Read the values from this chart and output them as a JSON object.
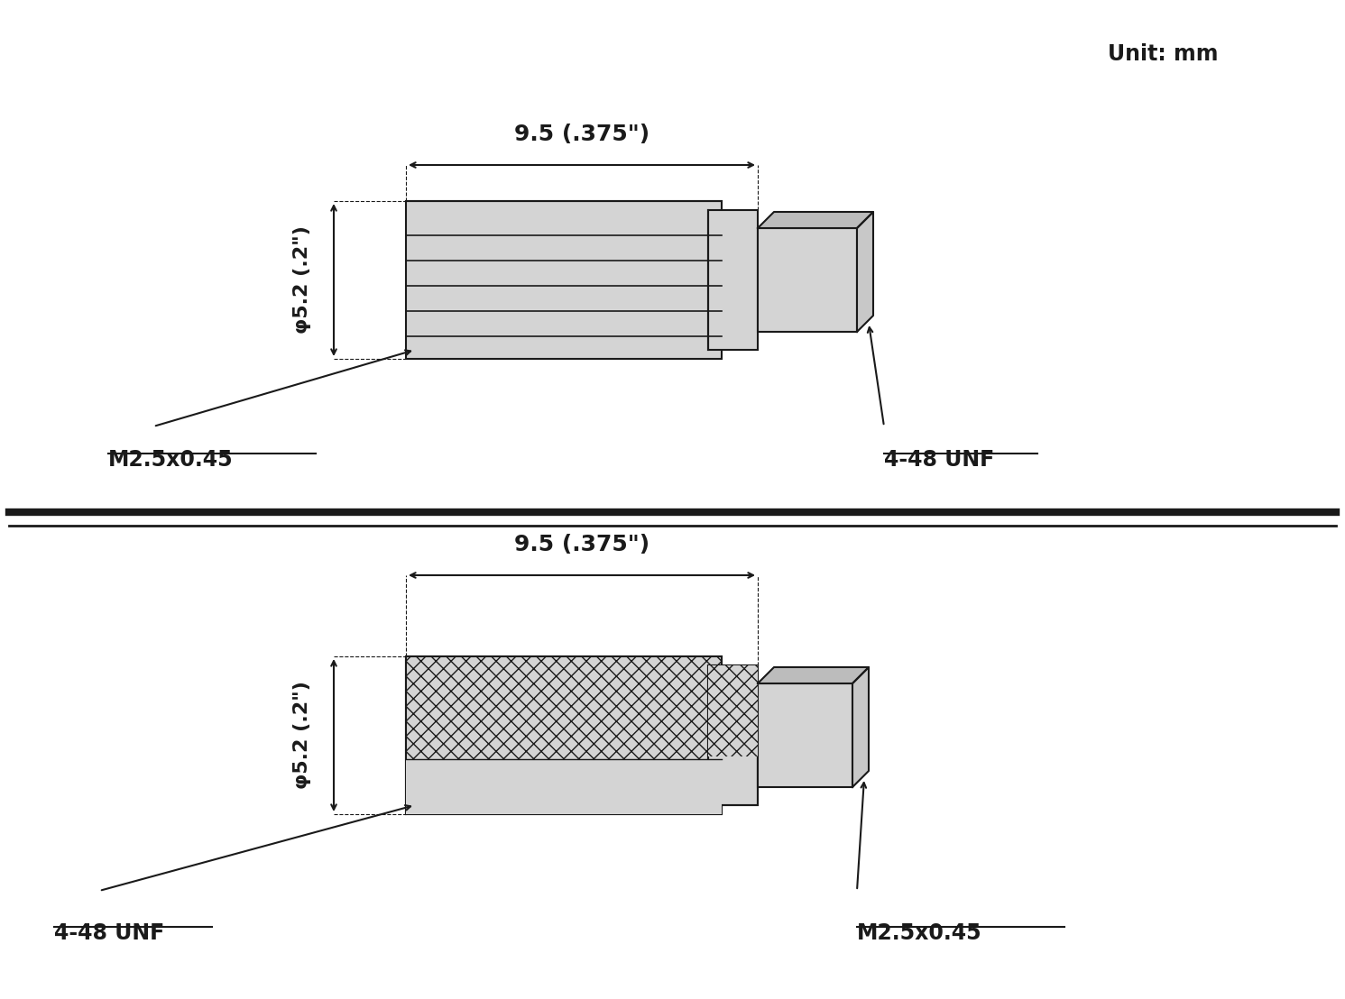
{
  "bg_color": "#ffffff",
  "line_color": "#1a1a1a",
  "fill_color": "#d4d4d4",
  "fig_width": 14.91,
  "fig_height": 11.08,
  "unit_text": "Unit: mm",
  "top_dim_horiz": "9.5 (.375\")",
  "top_dim_vert": "φ5.2 (.2\")",
  "top_label_left": "M2.5x0.45",
  "top_label_right": "4-48 UNF",
  "bot_dim_horiz": "9.5 (.375\")",
  "bot_dim_vert": "φ5.2 (.2\")",
  "bot_label_left": "4-48 UNF",
  "bot_label_right": "M2.5x0.45"
}
